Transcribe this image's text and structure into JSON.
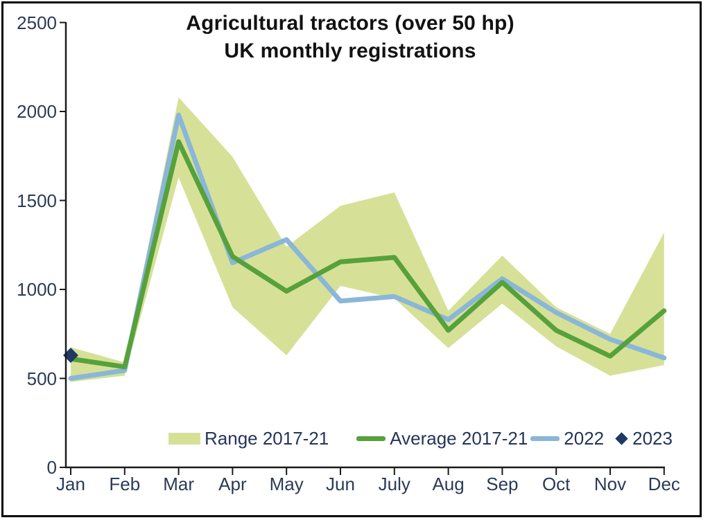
{
  "figure": {
    "title_line1": "Agricultural tractors (over 50 hp)",
    "title_line2": "UK monthly registrations"
  },
  "legend": {
    "items": [
      {
        "label": "Range 2017-21",
        "swatch": "band"
      },
      {
        "label": "Average 2017-21",
        "swatch": "line-green"
      },
      {
        "label": "2022",
        "swatch": "line-blue"
      },
      {
        "label": "2023",
        "swatch": "diamond"
      }
    ]
  },
  "colors": {
    "band": "#d6e197",
    "average": "#57a13c",
    "y2022": "#8ab6d8",
    "y2023": "#1f3864",
    "axis": "#1a1a1a",
    "tick_text": "#2b3a58"
  },
  "chart_data": {
    "type": "line",
    "title": "Agricultural tractors (over 50 hp) UK monthly registrations",
    "xlabel": "",
    "ylabel": "",
    "grid": false,
    "legend_position": "bottom-inside",
    "categories": [
      "Jan",
      "Feb",
      "Mar",
      "Apr",
      "May",
      "Jun",
      "July",
      "Aug",
      "Sep",
      "Oct",
      "Nov",
      "Dec"
    ],
    "y_axis": {
      "min": 0,
      "max": 2500,
      "step": 500,
      "ticks": [
        0,
        500,
        1000,
        1500,
        2000,
        2500
      ]
    },
    "series": [
      {
        "name": "Range 2017-21",
        "type": "band",
        "max": [
          675,
          590,
          2080,
          1745,
          1240,
          1470,
          1545,
          880,
          1190,
          900,
          750,
          1320
        ],
        "min": [
          480,
          515,
          1630,
          900,
          630,
          1020,
          950,
          670,
          920,
          680,
          515,
          575
        ]
      },
      {
        "name": "Average 2017-21",
        "type": "line",
        "values": [
          610,
          565,
          1830,
          1185,
          990,
          1155,
          1180,
          770,
          1040,
          770,
          625,
          880
        ]
      },
      {
        "name": "2022",
        "type": "line",
        "values": [
          500,
          545,
          1980,
          1150,
          1280,
          935,
          960,
          830,
          1060,
          870,
          720,
          615
        ]
      },
      {
        "name": "2023",
        "type": "points",
        "marker": "diamond",
        "values": [
          630,
          null,
          null,
          null,
          null,
          null,
          null,
          null,
          null,
          null,
          null,
          null
        ]
      }
    ]
  }
}
